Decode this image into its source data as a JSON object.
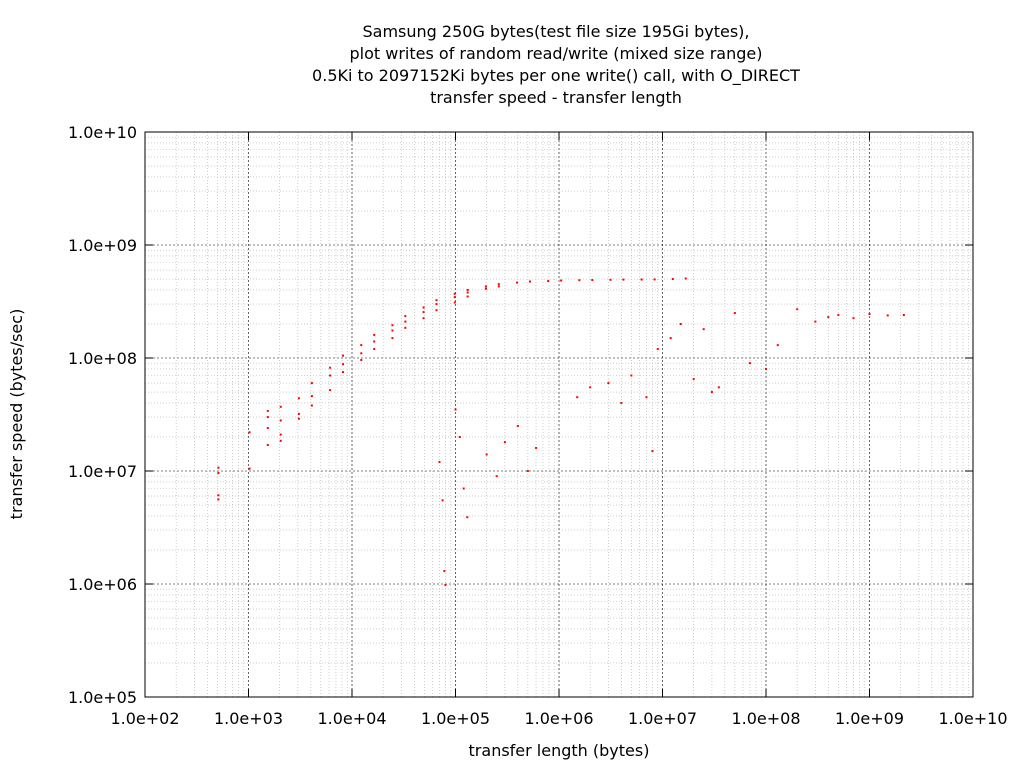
{
  "chart_data": {
    "type": "scatter",
    "title_lines": [
      "Samsung 250G bytes(test file size 195Gi bytes),",
      "plot writes of random read/write (mixed size range)",
      "0.5Ki to 2097152Ki bytes per one write() call, with O_DIRECT",
      "transfer speed - transfer length"
    ],
    "xlabel": "transfer length (bytes)",
    "ylabel": "transfer speed (bytes/sec)",
    "x_scale": "log",
    "y_scale": "log",
    "xlim": [
      100,
      10000000000
    ],
    "ylim": [
      100000,
      10000000000
    ],
    "x_ticks": [
      "1.0e+02",
      "1.0e+03",
      "1.0e+04",
      "1.0e+05",
      "1.0e+06",
      "1.0e+07",
      "1.0e+08",
      "1.0e+09",
      "1.0e+10"
    ],
    "y_ticks": [
      "1.0e+05",
      "1.0e+06",
      "1.0e+07",
      "1.0e+08",
      "1.0e+09",
      "1.0e+10"
    ],
    "grid": true,
    "legend": false,
    "series_color": "#ff0000",
    "series": [
      {
        "points": [
          [
            512,
            10700000
          ],
          [
            512,
            9600000
          ],
          [
            512,
            5600000
          ],
          [
            512,
            6100000
          ],
          [
            1024,
            22000000
          ],
          [
            1024,
            10500000
          ],
          [
            1536,
            34000000
          ],
          [
            1536,
            30000000
          ],
          [
            1536,
            24000000
          ],
          [
            1536,
            17000000
          ],
          [
            2048,
            37000000
          ],
          [
            2048,
            28000000
          ],
          [
            2048,
            21000000
          ],
          [
            2048,
            18500000
          ],
          [
            3072,
            44000000
          ],
          [
            3072,
            32000000
          ],
          [
            3072,
            29000000
          ],
          [
            4096,
            60000000
          ],
          [
            4096,
            46000000
          ],
          [
            4096,
            38000000
          ],
          [
            6144,
            82000000
          ],
          [
            6144,
            70000000
          ],
          [
            6144,
            52000000
          ],
          [
            8192,
            105000000
          ],
          [
            8192,
            88000000
          ],
          [
            8192,
            75000000
          ],
          [
            12288,
            130000000
          ],
          [
            12288,
            110000000
          ],
          [
            12288,
            96000000
          ],
          [
            16384,
            160000000
          ],
          [
            16384,
            140000000
          ],
          [
            16384,
            120000000
          ],
          [
            24576,
            195000000
          ],
          [
            24576,
            175000000
          ],
          [
            24576,
            150000000
          ],
          [
            32768,
            235000000
          ],
          [
            32768,
            210000000
          ],
          [
            32768,
            185000000
          ],
          [
            49152,
            280000000
          ],
          [
            49152,
            255000000
          ],
          [
            49152,
            225000000
          ],
          [
            65536,
            325000000
          ],
          [
            65536,
            300000000
          ],
          [
            65536,
            265000000
          ],
          [
            98304,
            370000000
          ],
          [
            98304,
            345000000
          ],
          [
            98304,
            310000000
          ],
          [
            131072,
            400000000
          ],
          [
            131072,
            380000000
          ],
          [
            131072,
            350000000
          ],
          [
            196608,
            430000000
          ],
          [
            196608,
            410000000
          ],
          [
            262144,
            450000000
          ],
          [
            262144,
            430000000
          ],
          [
            393216,
            465000000
          ],
          [
            524288,
            475000000
          ],
          [
            786432,
            480000000
          ],
          [
            1048576,
            485000000
          ],
          [
            1572864,
            488000000
          ],
          [
            2097152,
            490000000
          ],
          [
            3145728,
            492000000
          ],
          [
            4194304,
            494000000
          ],
          [
            6291456,
            495000000
          ],
          [
            8388608,
            496000000
          ],
          [
            12582912,
            500000000
          ],
          [
            16777216,
            505000000
          ],
          [
            70000,
            12000000
          ],
          [
            75000,
            5500000
          ],
          [
            78000,
            1300000
          ],
          [
            80000,
            980000
          ],
          [
            100000,
            35000000
          ],
          [
            110000,
            20000000
          ],
          [
            120000,
            7000000
          ],
          [
            130000,
            3900000
          ],
          [
            200000,
            14000000
          ],
          [
            250000,
            9000000
          ],
          [
            300000,
            18000000
          ],
          [
            400000,
            25000000
          ],
          [
            500000,
            10000000
          ],
          [
            600000,
            16000000
          ],
          [
            1500000,
            45000000
          ],
          [
            2000000,
            55000000
          ],
          [
            3000000,
            60000000
          ],
          [
            4000000,
            40000000
          ],
          [
            5000000,
            70000000
          ],
          [
            7000000,
            45000000
          ],
          [
            8000000,
            15000000
          ],
          [
            9000000,
            120000000
          ],
          [
            12000000,
            150000000
          ],
          [
            15000000,
            200000000
          ],
          [
            20000000,
            65000000
          ],
          [
            25000000,
            180000000
          ],
          [
            30000000,
            50000000
          ],
          [
            35000000,
            55000000
          ],
          [
            50000000,
            250000000
          ],
          [
            70000000,
            90000000
          ],
          [
            100000000,
            80000000
          ],
          [
            130000000,
            130000000
          ],
          [
            200000000,
            270000000
          ],
          [
            300000000,
            210000000
          ],
          [
            400000000,
            230000000
          ],
          [
            500000000,
            240000000
          ],
          [
            700000000,
            225000000
          ],
          [
            1000000000,
            245000000
          ],
          [
            1500000000,
            238000000
          ],
          [
            2147483648,
            240000000
          ]
        ]
      }
    ]
  }
}
